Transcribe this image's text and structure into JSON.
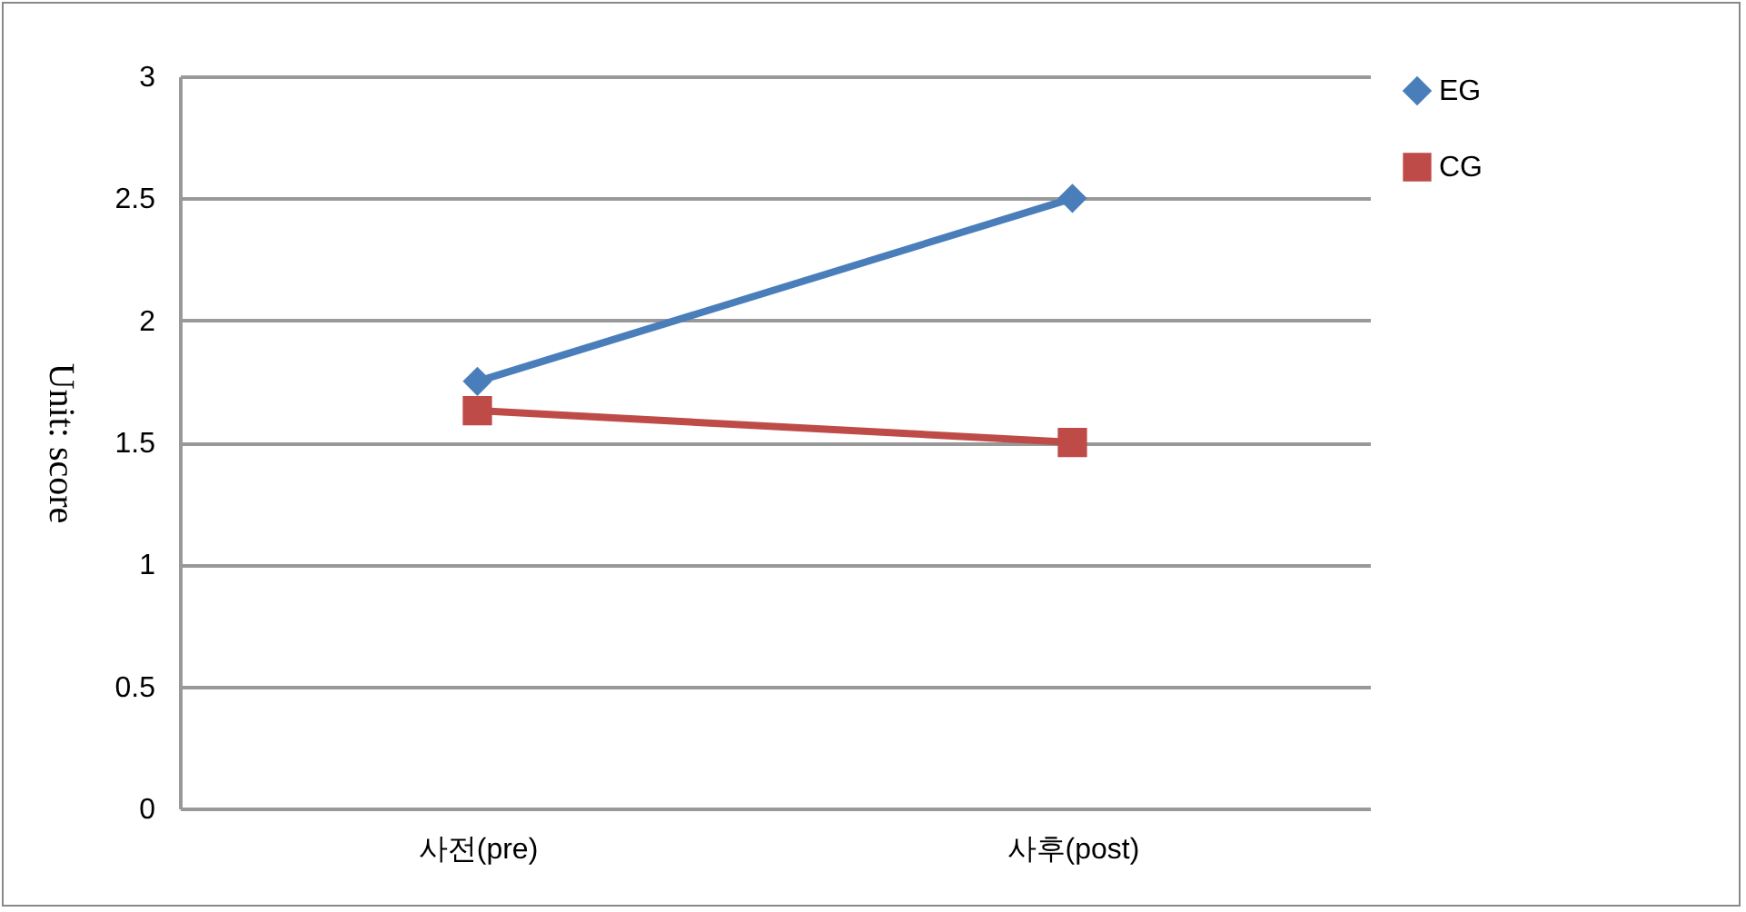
{
  "chart_data": {
    "type": "line",
    "ylabel": "Unit: score",
    "categories": [
      "사전(pre)",
      "사후(post)"
    ],
    "series": [
      {
        "name": "EG",
        "color": "#4a7ebb",
        "marker": "diamond",
        "values": [
          1.75,
          2.5
        ]
      },
      {
        "name": "CG",
        "color": "#be4b48",
        "marker": "square",
        "values": [
          1.63,
          1.5
        ]
      }
    ],
    "ylim": [
      0,
      3
    ],
    "yticks": [
      0,
      0.5,
      1,
      1.5,
      2,
      2.5,
      3
    ],
    "grid": "y",
    "legend": "right"
  }
}
